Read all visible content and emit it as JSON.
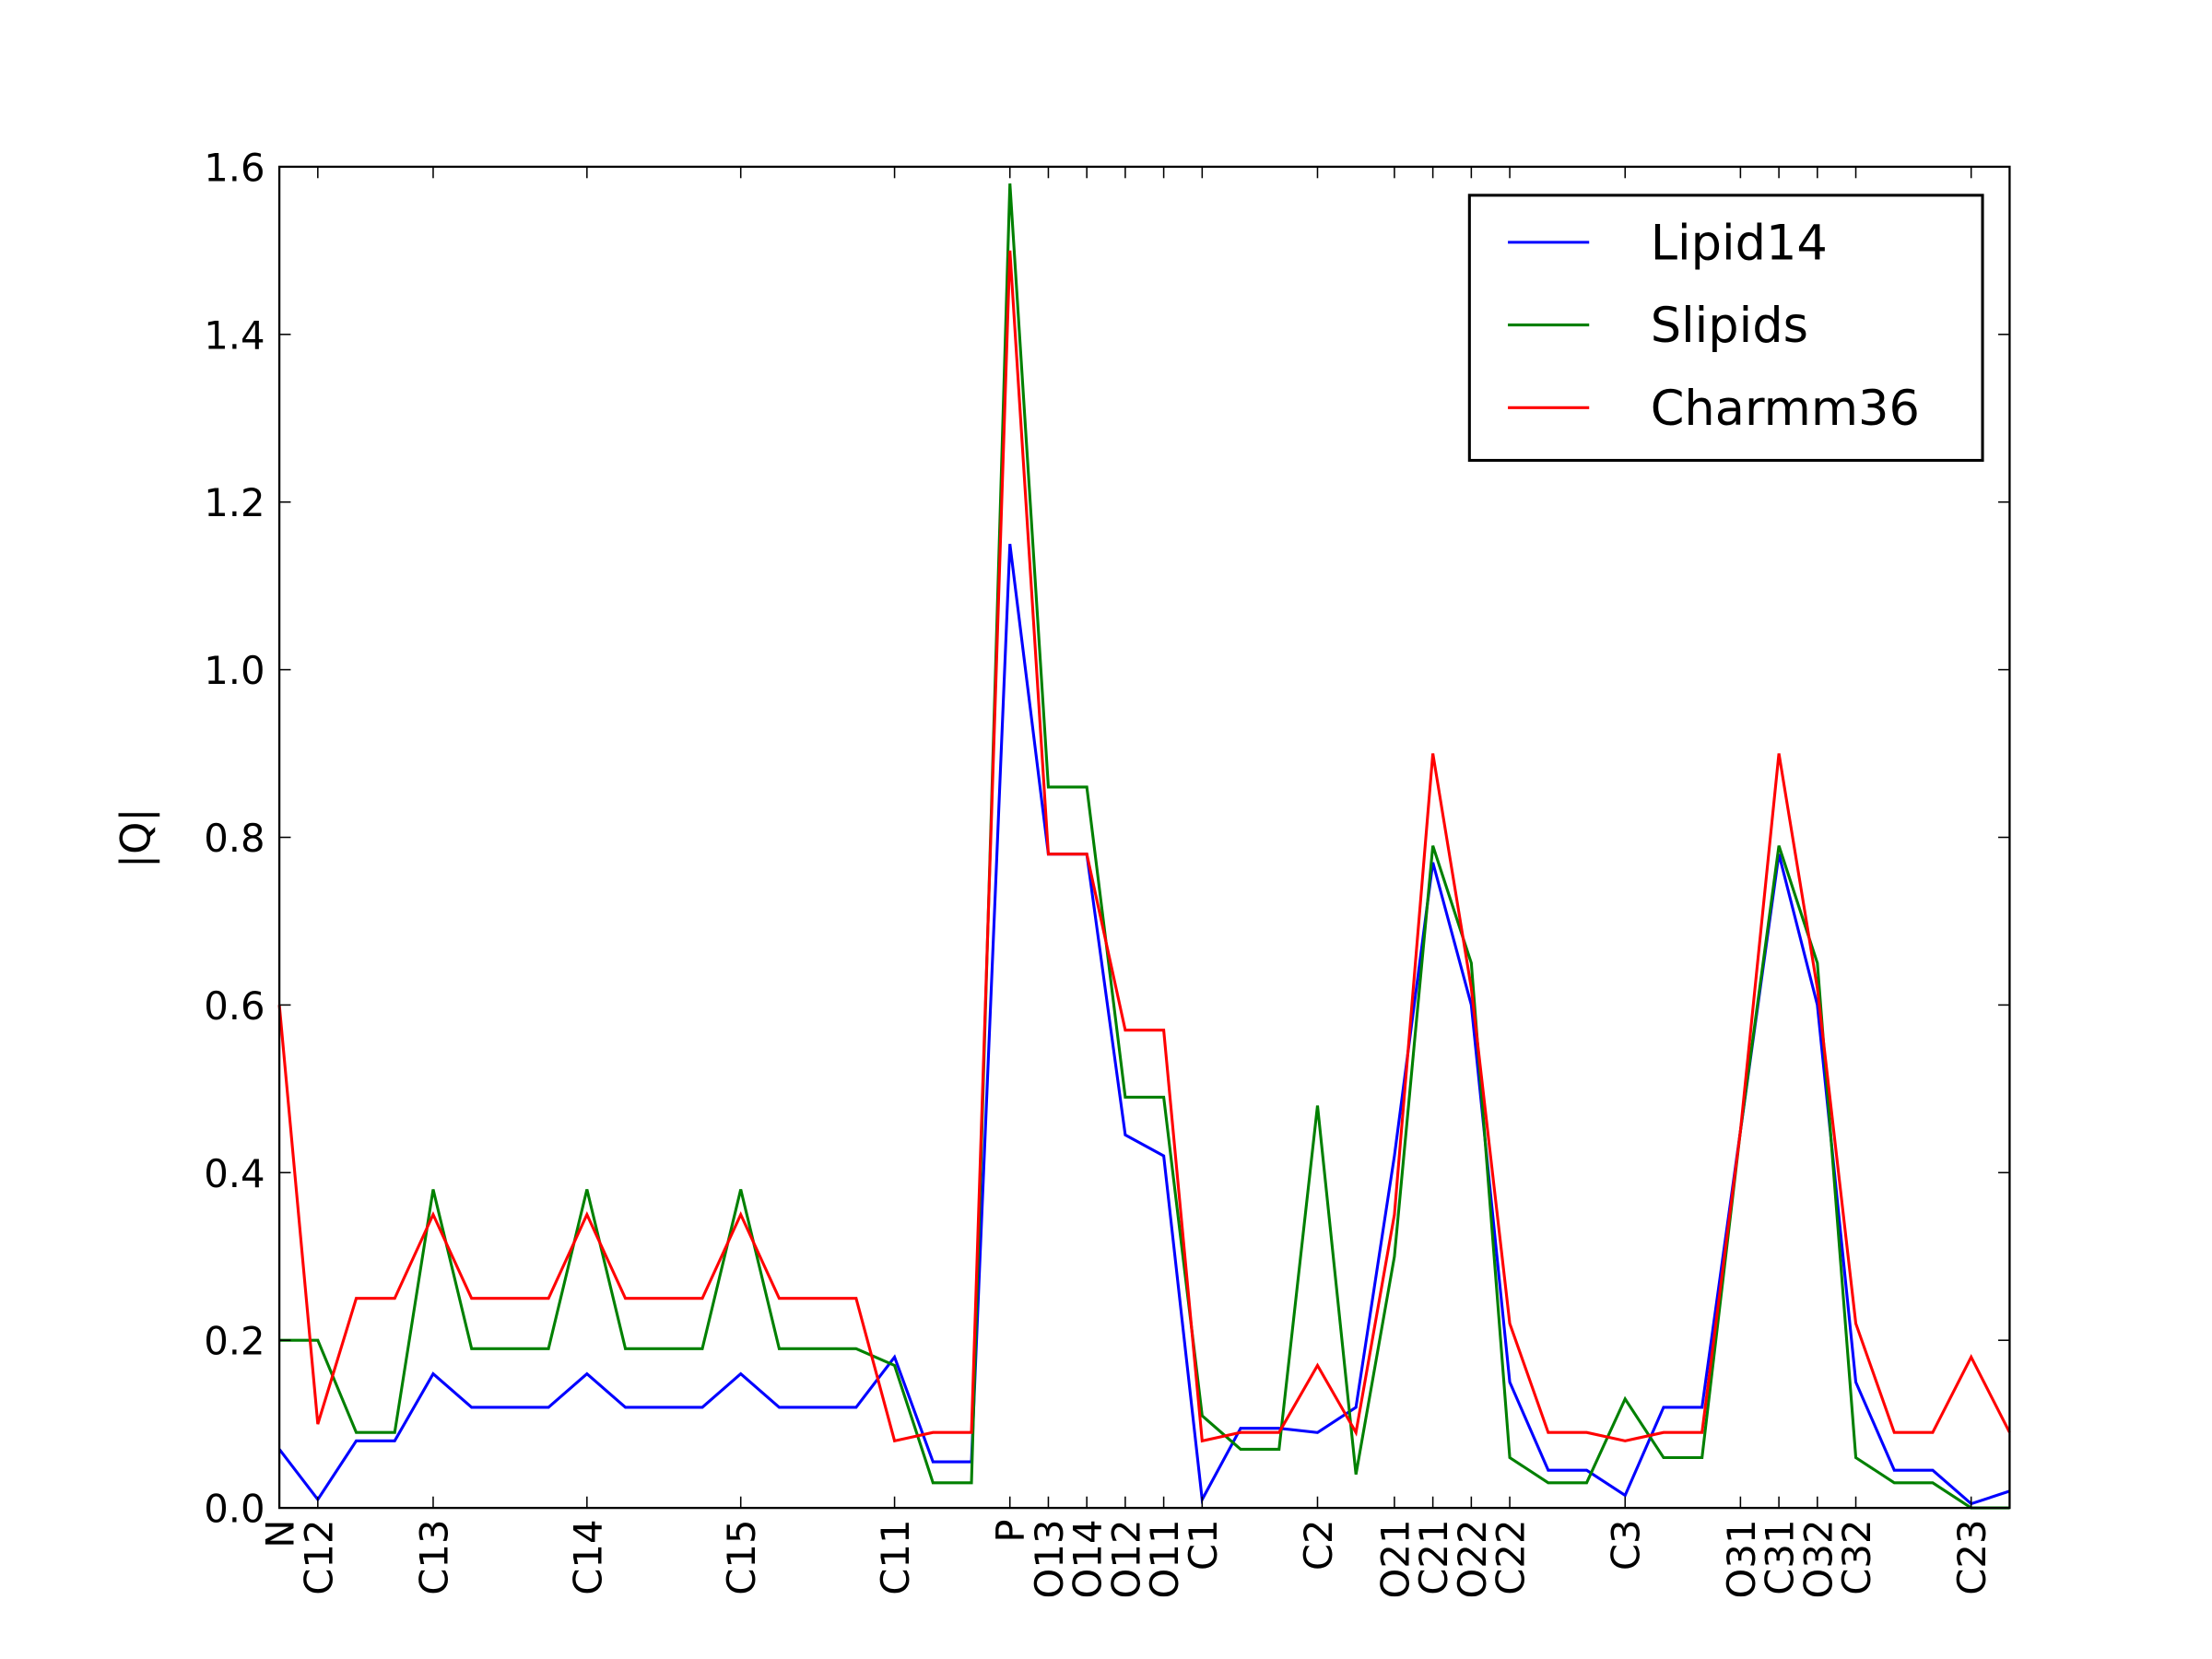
{
  "chart_data": {
    "type": "line",
    "ylabel": "|Q|",
    "categories": [
      "N",
      "C12",
      null,
      null,
      "C13",
      null,
      null,
      null,
      "C14",
      null,
      null,
      null,
      "C15",
      null,
      null,
      null,
      "C11",
      null,
      null,
      "P",
      "O13",
      "O14",
      "O12",
      "O11",
      "C1",
      null,
      null,
      "C2",
      null,
      "O21",
      "C21",
      "O22",
      "C22",
      null,
      null,
      "C3",
      null,
      null,
      "O31",
      "C31",
      "O32",
      "C32",
      null,
      null,
      "C23",
      null
    ],
    "series": [
      {
        "name": "Lipid14",
        "color": "#0000ff",
        "values": [
          0.07,
          0.01,
          0.08,
          0.08,
          0.16,
          0.12,
          0.12,
          0.12,
          0.16,
          0.12,
          0.12,
          0.12,
          0.16,
          0.12,
          0.12,
          0.12,
          0.18,
          0.055,
          0.055,
          1.15,
          0.78,
          0.78,
          0.445,
          0.42,
          0.01,
          0.095,
          0.095,
          0.09,
          0.12,
          0.42,
          0.77,
          0.6,
          0.15,
          0.045,
          0.045,
          0.015,
          0.12,
          0.12,
          0.45,
          0.78,
          0.6,
          0.15,
          0.045,
          0.045,
          0.005,
          0.02
        ]
      },
      {
        "name": "Slipids",
        "color": "#008000",
        "values": [
          0.2,
          0.2,
          0.09,
          0.09,
          0.38,
          0.19,
          0.19,
          0.19,
          0.38,
          0.19,
          0.19,
          0.19,
          0.38,
          0.19,
          0.19,
          0.19,
          0.17,
          0.03,
          0.03,
          1.58,
          0.86,
          0.86,
          0.49,
          0.49,
          0.11,
          0.07,
          0.07,
          0.48,
          0.04,
          0.3,
          0.79,
          0.65,
          0.06,
          0.03,
          0.03,
          0.13,
          0.06,
          0.06,
          0.45,
          0.79,
          0.65,
          0.06,
          0.03,
          0.03,
          0.0,
          0.0
        ]
      },
      {
        "name": "Charmm36",
        "color": "#ff0000",
        "values": [
          0.6,
          0.1,
          0.25,
          0.25,
          0.35,
          0.25,
          0.25,
          0.25,
          0.35,
          0.25,
          0.25,
          0.25,
          0.35,
          0.25,
          0.25,
          0.25,
          0.08,
          0.09,
          0.09,
          1.5,
          0.78,
          0.78,
          0.57,
          0.57,
          0.08,
          0.09,
          0.09,
          0.17,
          0.09,
          0.35,
          0.9,
          0.62,
          0.22,
          0.09,
          0.09,
          0.08,
          0.09,
          0.09,
          0.45,
          0.9,
          0.62,
          0.22,
          0.09,
          0.09,
          0.18,
          0.09
        ]
      }
    ],
    "ylim": [
      0,
      1.6
    ],
    "yticks": [
      {
        "value": 0,
        "label": "0.0"
      },
      0.2,
      0.4,
      0.6,
      0.8,
      {
        "value": 1,
        "label": "1.0"
      },
      1.2,
      1.4,
      1.6
    ],
    "legend": "upper right"
  }
}
